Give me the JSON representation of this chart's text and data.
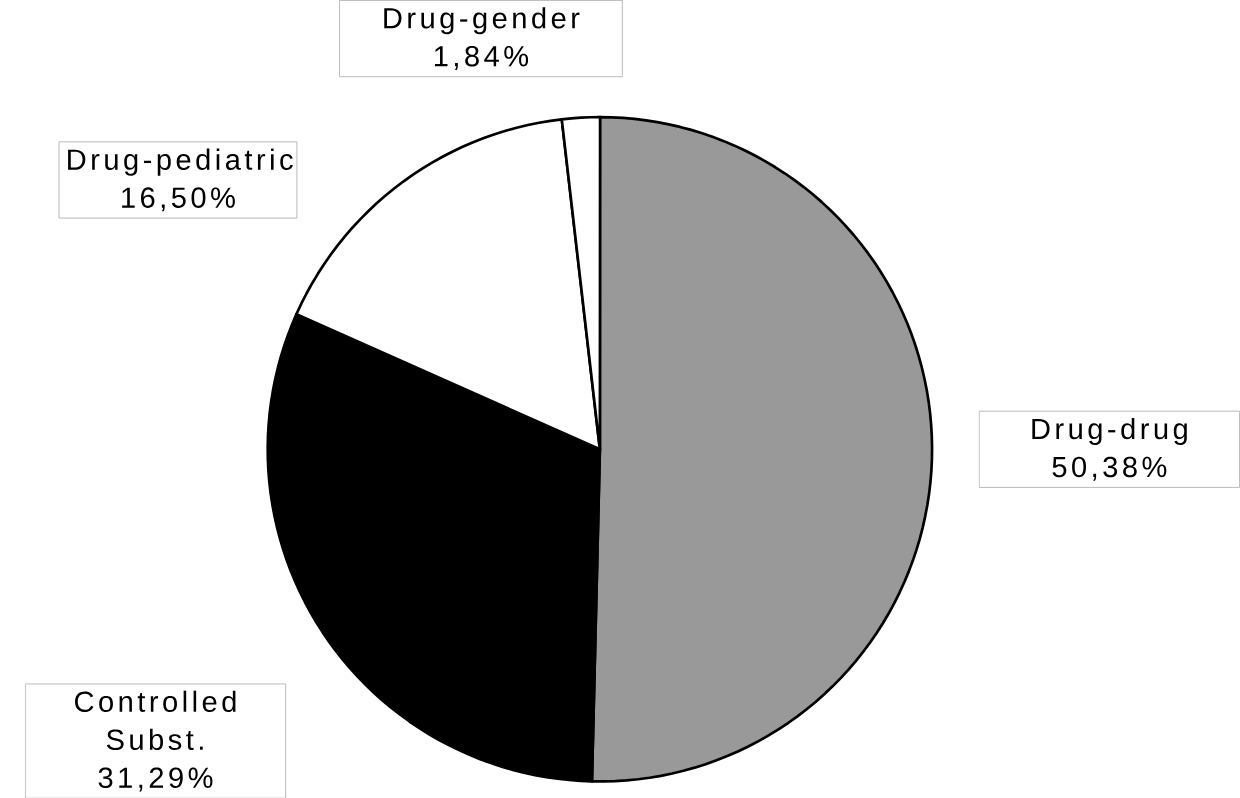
{
  "chart_data": {
    "type": "pie",
    "categories": [
      "Drug-drug",
      "Controlled Subst.",
      "Drug-pediatric",
      "Drug-gender"
    ],
    "values": [
      50.38,
      31.29,
      16.5,
      1.84
    ],
    "value_labels": [
      "50,38%",
      "31,29%",
      "16,50%",
      "1,84%"
    ],
    "colors": [
      "#999999",
      "#000000",
      "#ffffff",
      "#ffffff"
    ]
  }
}
